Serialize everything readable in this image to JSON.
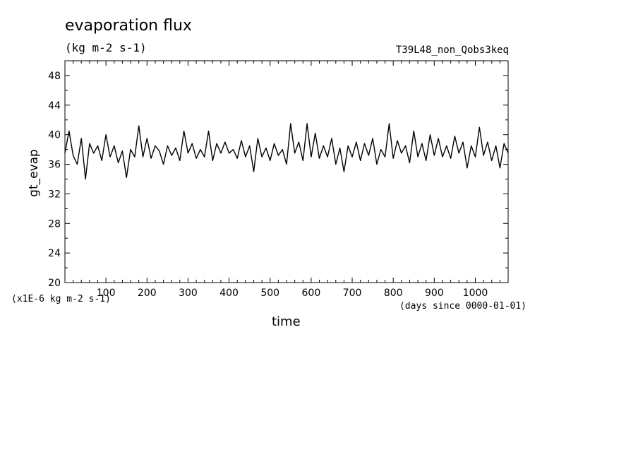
{
  "chart_data": {
    "type": "line",
    "title": "evaporation flux",
    "units": "(kg m-2 s-1)",
    "run_label": "T39L48_non_Qobs3keq",
    "xlabel": "time",
    "xunits": "(days since 0000-01-01)",
    "ylabel": "gt_evap",
    "yscale_label": "(x1E-6 kg m-2 s-1)",
    "xlim": [
      0,
      1080
    ],
    "ylim": [
      20,
      50
    ],
    "xticks": [
      100,
      200,
      300,
      400,
      500,
      600,
      700,
      800,
      900,
      1000
    ],
    "yticks": [
      20,
      24,
      28,
      32,
      36,
      40,
      44,
      48
    ],
    "grid": false,
    "series": [
      {
        "x": [
          0,
          10,
          20,
          30,
          40,
          50,
          60,
          70,
          80,
          90,
          100,
          110,
          120,
          130,
          140,
          150,
          160,
          170,
          180,
          190,
          200,
          210,
          220,
          230,
          240,
          250,
          260,
          270,
          280,
          290,
          300,
          310,
          320,
          330,
          340,
          350,
          360,
          370,
          380,
          390,
          400,
          410,
          420,
          430,
          440,
          450,
          460,
          470,
          480,
          490,
          500,
          510,
          520,
          530,
          540,
          550,
          560,
          570,
          580,
          590,
          600,
          610,
          620,
          630,
          640,
          650,
          660,
          670,
          680,
          690,
          700,
          710,
          720,
          730,
          740,
          750,
          760,
          770,
          780,
          790,
          800,
          810,
          820,
          830,
          840,
          850,
          860,
          870,
          880,
          890,
          900,
          910,
          920,
          930,
          940,
          950,
          960,
          970,
          980,
          990,
          1000,
          1010,
          1020,
          1030,
          1040,
          1050,
          1060,
          1070,
          1080
        ],
        "y": [
          37.5,
          40.5,
          37.2,
          36.0,
          39.5,
          34.0,
          38.8,
          37.5,
          38.5,
          36.5,
          40.0,
          37.0,
          38.5,
          36.2,
          37.8,
          34.2,
          38.0,
          37.0,
          41.2,
          37.0,
          39.5,
          36.8,
          38.5,
          37.8,
          36.0,
          38.5,
          37.2,
          38.2,
          36.5,
          40.5,
          37.5,
          38.8,
          36.8,
          38.0,
          37.0,
          40.5,
          36.5,
          38.8,
          37.5,
          39.0,
          37.5,
          38.0,
          36.8,
          39.2,
          37.0,
          38.5,
          35.0,
          39.5,
          37.0,
          38.2,
          36.5,
          38.8,
          37.2,
          38.0,
          36.0,
          41.5,
          37.5,
          39.0,
          36.5,
          41.5,
          37.0,
          40.2,
          36.8,
          38.5,
          37.0,
          39.5,
          36.0,
          38.2,
          35.0,
          38.5,
          37.0,
          39.0,
          36.5,
          38.8,
          37.2,
          39.5,
          36.0,
          38.0,
          37.0,
          41.5,
          36.8,
          39.2,
          37.5,
          38.5,
          36.2,
          40.5,
          37.0,
          38.8,
          36.5,
          40.0,
          37.2,
          39.5,
          37.0,
          38.5,
          36.8,
          39.8,
          37.5,
          39.0,
          35.5,
          38.5,
          37.0,
          41.0,
          37.2,
          39.0,
          36.5,
          38.5,
          35.5,
          38.8,
          37.5
        ]
      }
    ]
  }
}
